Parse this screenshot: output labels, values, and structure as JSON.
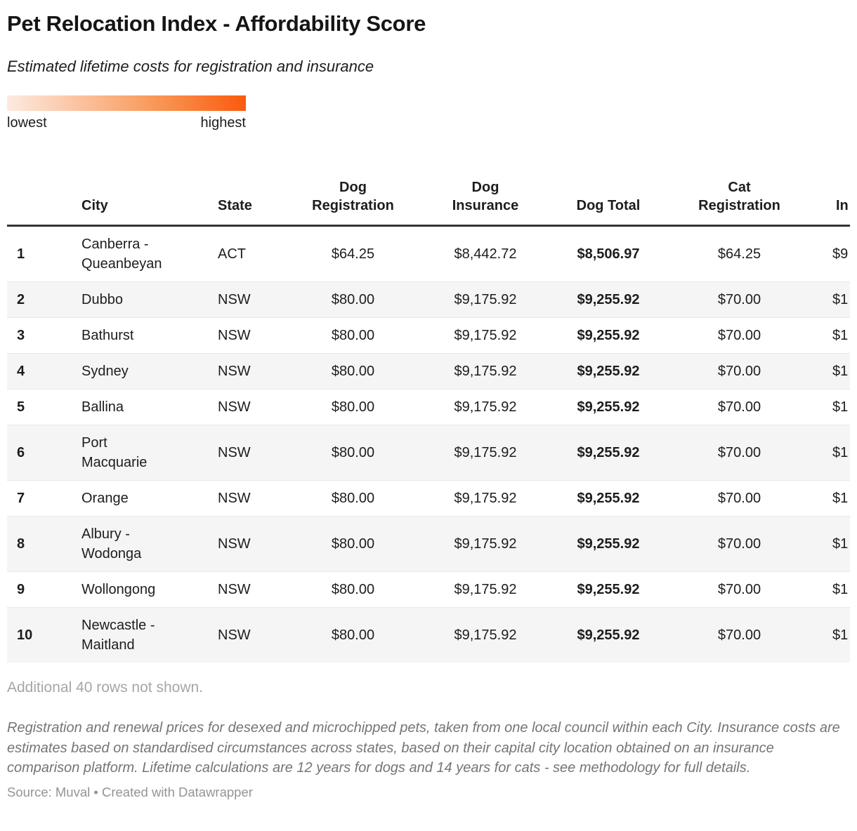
{
  "header": {
    "title": "Pet Relocation Index - Affordability Score",
    "subtitle": "Estimated lifetime costs for registration and insurance"
  },
  "legend": {
    "low_label": "lowest",
    "high_label": "highest",
    "gradient_start_color": "#fdeadf",
    "gradient_end_color": "#fa5a0e"
  },
  "table": {
    "columns": [
      {
        "key": "rank",
        "label": ""
      },
      {
        "key": "city",
        "label": "City"
      },
      {
        "key": "state",
        "label": "State"
      },
      {
        "key": "dog_registration",
        "label": "Dog Registration"
      },
      {
        "key": "dog_insurance",
        "label": "Dog Insurance"
      },
      {
        "key": "dog_total",
        "label": "Dog Total"
      },
      {
        "key": "cat_registration",
        "label": "Cat Registration"
      },
      {
        "key": "cat_insurance_clipped",
        "label": "In"
      }
    ],
    "rows": [
      {
        "rank": "1",
        "city": "Canberra - Queanbeyan",
        "state": "ACT",
        "dog_registration": "$64.25",
        "dog_insurance": "$8,442.72",
        "dog_total": "$8,506.97",
        "cat_registration": "$64.25",
        "cat_insurance_clipped": "$9"
      },
      {
        "rank": "2",
        "city": "Dubbo",
        "state": "NSW",
        "dog_registration": "$80.00",
        "dog_insurance": "$9,175.92",
        "dog_total": "$9,255.92",
        "cat_registration": "$70.00",
        "cat_insurance_clipped": "$1"
      },
      {
        "rank": "3",
        "city": "Bathurst",
        "state": "NSW",
        "dog_registration": "$80.00",
        "dog_insurance": "$9,175.92",
        "dog_total": "$9,255.92",
        "cat_registration": "$70.00",
        "cat_insurance_clipped": "$1"
      },
      {
        "rank": "4",
        "city": "Sydney",
        "state": "NSW",
        "dog_registration": "$80.00",
        "dog_insurance": "$9,175.92",
        "dog_total": "$9,255.92",
        "cat_registration": "$70.00",
        "cat_insurance_clipped": "$1"
      },
      {
        "rank": "5",
        "city": "Ballina",
        "state": "NSW",
        "dog_registration": "$80.00",
        "dog_insurance": "$9,175.92",
        "dog_total": "$9,255.92",
        "cat_registration": "$70.00",
        "cat_insurance_clipped": "$1"
      },
      {
        "rank": "6",
        "city": "Port Macquarie",
        "state": "NSW",
        "dog_registration": "$80.00",
        "dog_insurance": "$9,175.92",
        "dog_total": "$9,255.92",
        "cat_registration": "$70.00",
        "cat_insurance_clipped": "$1"
      },
      {
        "rank": "7",
        "city": "Orange",
        "state": "NSW",
        "dog_registration": "$80.00",
        "dog_insurance": "$9,175.92",
        "dog_total": "$9,255.92",
        "cat_registration": "$70.00",
        "cat_insurance_clipped": "$1"
      },
      {
        "rank": "8",
        "city": "Albury - Wodonga",
        "state": "NSW",
        "dog_registration": "$80.00",
        "dog_insurance": "$9,175.92",
        "dog_total": "$9,255.92",
        "cat_registration": "$70.00",
        "cat_insurance_clipped": "$1"
      },
      {
        "rank": "9",
        "city": "Wollongong",
        "state": "NSW",
        "dog_registration": "$80.00",
        "dog_insurance": "$9,175.92",
        "dog_total": "$9,255.92",
        "cat_registration": "$70.00",
        "cat_insurance_clipped": "$1"
      },
      {
        "rank": "10",
        "city": "Newcastle - Maitland",
        "state": "NSW",
        "dog_registration": "$80.00",
        "dog_insurance": "$9,175.92",
        "dog_total": "$9,255.92",
        "cat_registration": "$70.00",
        "cat_insurance_clipped": "$1"
      }
    ],
    "more_rows_note": "Additional 40 rows not shown."
  },
  "footer": {
    "notes": "Registration and renewal prices for desexed and microchipped pets, taken from one local council within each City. Insurance costs are estimates based on standardised circumstances across states, based on their capital city location obtained on an insurance comparison platform. Lifetime calculations are 12 years for dogs and 14 years for cats - see methodology for full details.",
    "source": "Source: Muval • Created with Datawrapper"
  }
}
